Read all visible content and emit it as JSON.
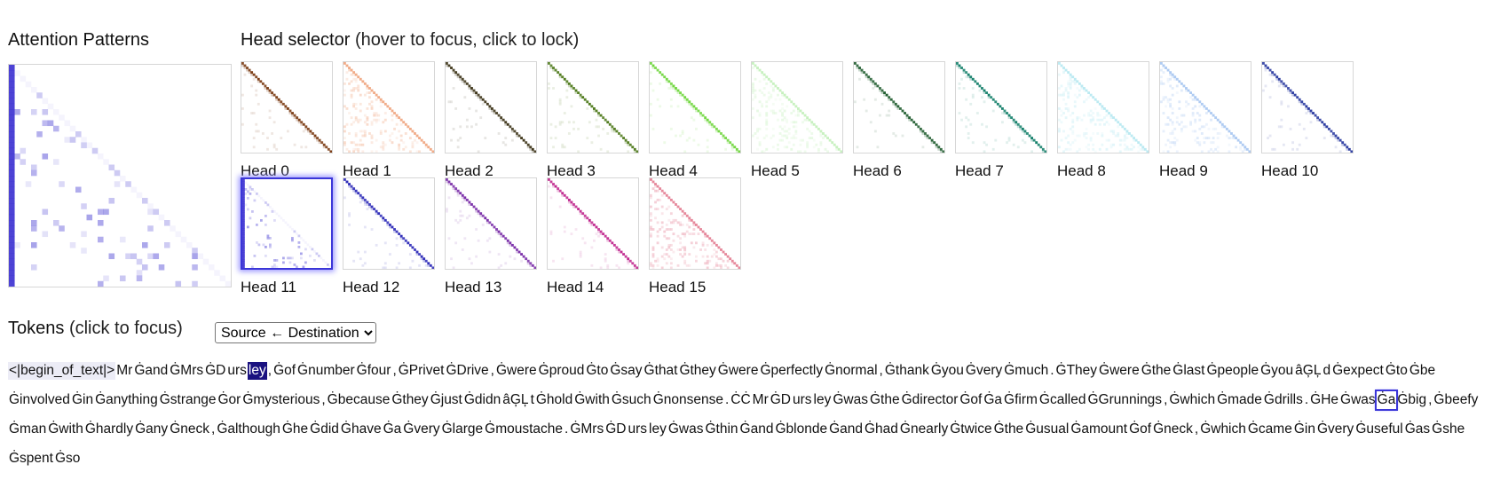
{
  "attention_panel": {
    "title": "Attention Patterns"
  },
  "head_selector": {
    "title": "Head selector",
    "hint": "(hover to focus, click to lock)",
    "locked_head": 11,
    "heads": [
      {
        "label": "Head 0",
        "color": "#7a3a12",
        "pattern": "diagonal"
      },
      {
        "label": "Head 1",
        "color": "#e8753a",
        "pattern": "faded"
      },
      {
        "label": "Head 2",
        "color": "#3d3418",
        "pattern": "diagonal"
      },
      {
        "label": "Head 3",
        "color": "#4f7a1c",
        "pattern": "diagonal"
      },
      {
        "label": "Head 4",
        "color": "#6fd63d",
        "pattern": "diagonal"
      },
      {
        "label": "Head 5",
        "color": "#a3e896",
        "pattern": "faded"
      },
      {
        "label": "Head 6",
        "color": "#1f5c2e",
        "pattern": "diagonal"
      },
      {
        "label": "Head 7",
        "color": "#14806a",
        "pattern": "diagonal"
      },
      {
        "label": "Head 8",
        "color": "#8fdcea",
        "pattern": "faded"
      },
      {
        "label": "Head 9",
        "color": "#79a9ea",
        "pattern": "faded"
      },
      {
        "label": "Head 10",
        "color": "#2a3aa0",
        "pattern": "diagonal"
      },
      {
        "label": "Head 11",
        "color": "#3a2fd0",
        "pattern": "sparse"
      },
      {
        "label": "Head 12",
        "color": "#2d2ab8",
        "pattern": "diagonal"
      },
      {
        "label": "Head 13",
        "color": "#7a2ea8",
        "pattern": "diagonal"
      },
      {
        "label": "Head 14",
        "color": "#c0288e",
        "pattern": "diagonal"
      },
      {
        "label": "Head 15",
        "color": "#d63a5a",
        "pattern": "faded"
      }
    ]
  },
  "tokens_panel": {
    "title": "Tokens",
    "hint": "(click to focus)",
    "direction_options": [
      "Source ← Destination"
    ],
    "direction_selected": "Source ← Destination",
    "focused_index": 6,
    "destination_index": 79,
    "tokens": [
      "<|begin_of_text|>",
      "Mr",
      "Ġand",
      "ĠMrs",
      "ĠD",
      "urs",
      "ley",
      ",",
      "Ġof",
      "Ġnumber",
      "Ġfour",
      ",",
      "ĠPrivet",
      "ĠDrive",
      ",",
      "Ġwere",
      "Ġproud",
      "Ġto",
      "Ġsay",
      "Ġthat",
      "Ġthey",
      "Ġwere",
      "Ġperfectly",
      "Ġnormal",
      ",",
      "Ġthank",
      "Ġyou",
      "Ġvery",
      "Ġmuch",
      ".",
      "ĠThey",
      "Ġwere",
      "Ġthe",
      "Ġlast",
      "Ġpeople",
      "Ġyou",
      "âĢĻ",
      "d",
      "Ġexpect",
      "Ġto",
      "Ġbe",
      "Ġinvolved",
      "Ġin",
      "Ġanything",
      "Ġstrange",
      "Ġor",
      "Ġmysterious",
      ",",
      "Ġbecause",
      "Ġthey",
      "Ġjust",
      "Ġdidn",
      "âĢĻ",
      "t",
      "Ġhold",
      "Ġwith",
      "Ġsuch",
      "Ġnonsense",
      ".",
      "ĊĊ",
      "Mr",
      "ĠD",
      "urs",
      "ley",
      "Ġwas",
      "Ġthe",
      "Ġdirector",
      "Ġof",
      "Ġa",
      "Ġfirm",
      "Ġcalled",
      "ĠGrunnings",
      ",",
      "Ġwhich",
      "Ġmade",
      "Ġdrills",
      ".",
      "ĠHe",
      "Ġwas",
      "Ġa",
      "Ġbig",
      ",",
      "Ġbeefy",
      "Ġman",
      "Ġwith",
      "Ġhardly",
      "Ġany",
      "Ġneck",
      ",",
      "Ġalthough",
      "Ġhe",
      "Ġdid",
      "Ġhave",
      "Ġa",
      "Ġvery",
      "Ġlarge",
      "Ġmoustache",
      ".",
      "ĠMrs",
      "ĠD",
      "urs",
      "ley",
      "Ġwas",
      "Ġthin",
      "Ġand",
      "Ġblonde",
      "Ġand",
      "Ġhad",
      "Ġnearly",
      "Ġtwice",
      "Ġthe",
      "Ġusual",
      "Ġamount",
      "Ġof",
      "Ġneck",
      ",",
      "Ġwhich",
      "Ġcame",
      "Ġin",
      "Ġvery",
      "Ġuseful",
      "Ġas",
      "Ġshe",
      "Ġspent",
      "Ġso"
    ]
  }
}
